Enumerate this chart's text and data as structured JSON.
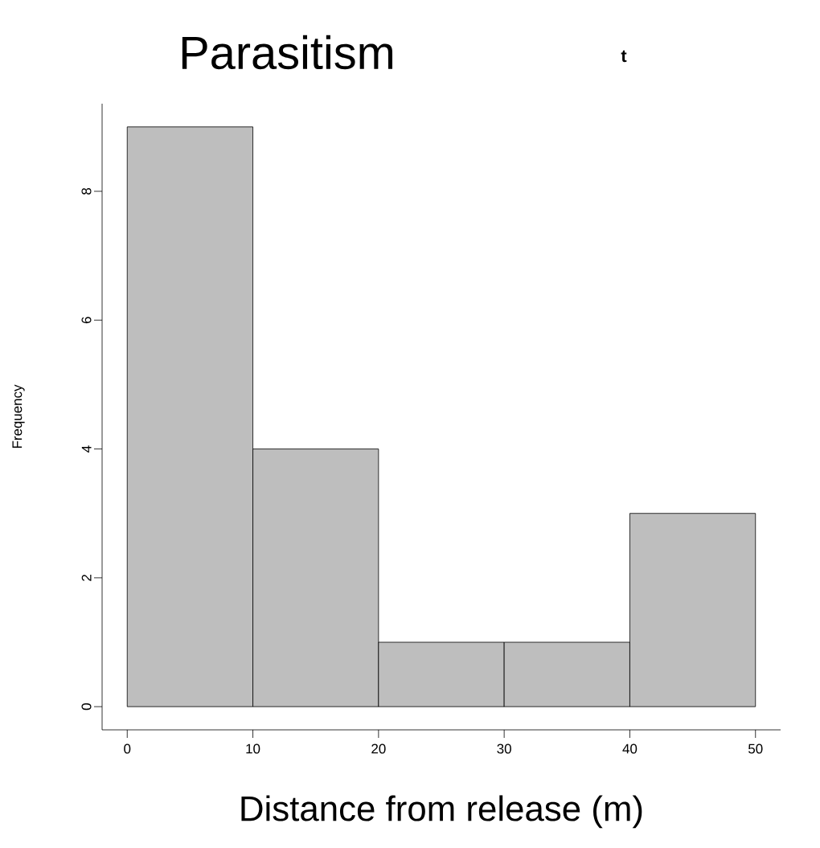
{
  "chart_data": {
    "type": "histogram",
    "title": "Parasitism",
    "xlabel": "Distance from release (m)",
    "ylabel": "Frequency",
    "annotations": [
      "t"
    ],
    "bins": [
      0,
      10,
      20,
      30,
      40,
      50
    ],
    "values": [
      9,
      4,
      1,
      1,
      3
    ],
    "color": "#bebebe",
    "xlim": [
      -2,
      52
    ],
    "ylim": [
      -0.36,
      9.36
    ],
    "xticks": [
      0,
      10,
      20,
      30,
      40,
      50
    ],
    "yticks": [
      0,
      2,
      4,
      6,
      8
    ]
  }
}
